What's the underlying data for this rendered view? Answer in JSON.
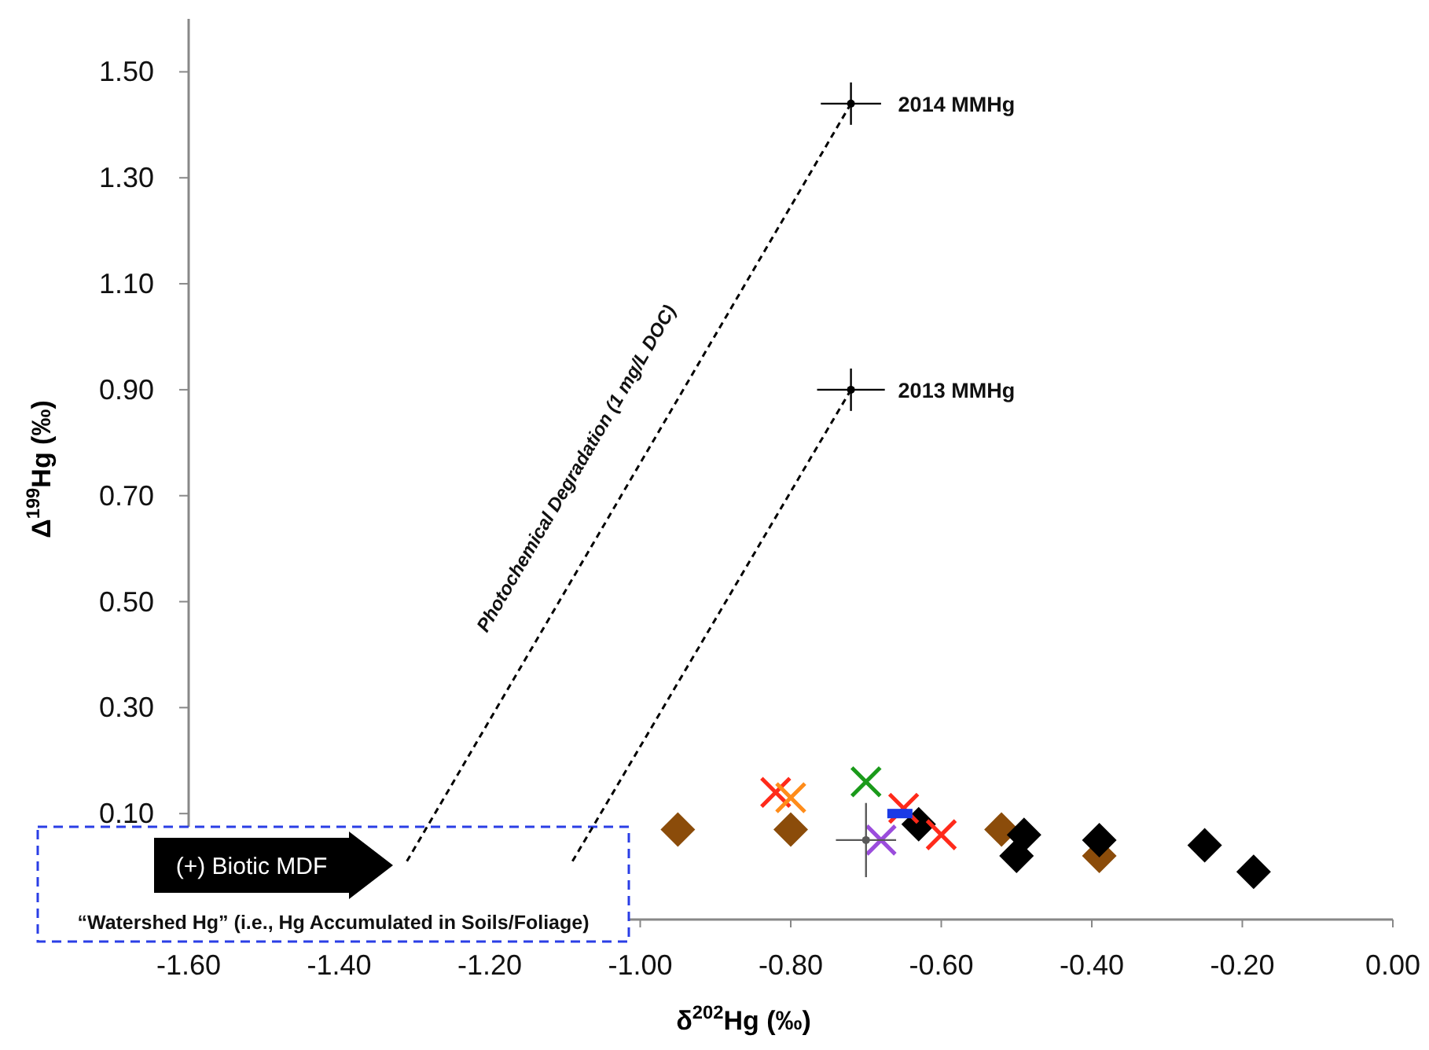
{
  "chart_data": {
    "type": "scatter",
    "xlabel": "δ$^{202}$Hg (‰)",
    "ylabel": "Δ$^{199}$Hg (‰)",
    "xlim": [
      -1.6,
      0
    ],
    "xticks": [
      {
        "value": -1.6,
        "label": "-1.60"
      },
      {
        "value": -1.4,
        "label": "-1.40"
      },
      {
        "value": -1.2,
        "label": "-1.20"
      },
      {
        "value": -1,
        "label": "-1.00"
      },
      {
        "value": -0.8,
        "label": "-0.80"
      },
      {
        "value": -0.6,
        "label": "-0.60"
      },
      {
        "value": -0.4,
        "label": "-0.40"
      },
      {
        "value": -0.2,
        "label": "-0.20"
      },
      {
        "value": 0,
        "label": "0.00"
      }
    ],
    "ylim": [
      -0.1,
      1.6
    ],
    "yticks": [
      {
        "value": 0.1,
        "label": "0.10"
      },
      {
        "value": 0.3,
        "label": "0.30"
      },
      {
        "value": 0.5,
        "label": "0.50"
      },
      {
        "value": 0.7,
        "label": "0.70"
      },
      {
        "value": 0.9,
        "label": "0.90"
      },
      {
        "value": 1.1,
        "label": "1.10"
      },
      {
        "value": 1.3,
        "label": "1.30"
      },
      {
        "value": 1.5,
        "label": "1.50"
      }
    ],
    "grid": false,
    "series": [
      {
        "type": "line",
        "line_style": "dashed",
        "marker": "none",
        "color": "#000000",
        "x": [
          -1.31,
          -0.72
        ],
        "values": [
          0.01,
          1.44
        ]
      },
      {
        "type": "line",
        "line_style": "dashed",
        "marker": "none",
        "color": "#000000",
        "x": [
          -1.09,
          -0.72
        ],
        "values": [
          0.01,
          0.9
        ]
      },
      {
        "marker": "diamond",
        "color": "#8b4c0a",
        "x": [
          -0.95,
          -0.8,
          -0.52,
          -0.39
        ],
        "values": [
          0.07,
          0.07,
          0.07,
          0.02
        ]
      },
      {
        "marker": "diamond",
        "color": "#000000",
        "x": [
          -0.63,
          -0.49,
          -0.5,
          -0.39,
          -0.25,
          -0.185
        ],
        "values": [
          0.08,
          0.06,
          0.02,
          0.05,
          0.04,
          -0.01
        ]
      },
      {
        "marker": "cross",
        "color": "#ff2a1a",
        "x": [
          -0.82,
          -0.65,
          -0.6
        ],
        "values": [
          0.14,
          0.11,
          0.06
        ]
      },
      {
        "marker": "cross",
        "color": "#ff8c1a",
        "x": [
          -0.8
        ],
        "values": [
          0.13
        ]
      },
      {
        "marker": "cross",
        "color": "#1a9a1a",
        "x": [
          -0.7
        ],
        "values": [
          0.16
        ]
      },
      {
        "marker": "cross",
        "color": "#9b4ddc",
        "x": [
          -0.68
        ],
        "values": [
          0.05
        ]
      },
      {
        "marker": "square",
        "color": "#1a3ae6",
        "x": [
          -0.655
        ],
        "values": [
          0.1
        ]
      },
      {
        "marker": "circle",
        "color": "#595959",
        "x": [
          -0.7
        ],
        "values": [
          0.05
        ],
        "xerrors": [
          0.04
        ],
        "errors": [
          0.07
        ]
      },
      {
        "marker": "circle",
        "color": "#000000",
        "x": [
          -0.72,
          -0.72
        ],
        "values": [
          1.44,
          0.9
        ],
        "xerrors": [
          0.04,
          0.045
        ],
        "errors": [
          0.04,
          0.04
        ]
      }
    ],
    "annotations": [
      "Photochemical Degradation (1 mg/L DOC)",
      {
        "text": "2014 MMHg",
        "x": -0.72,
        "y": 1.44
      },
      {
        "text": "2013 MMHg",
        "x": -0.72,
        "y": 0.9
      },
      "(+) Biotic MDF",
      "“Watershed Hg” (i.e., Hg Accumulated in Soils/Foliage)"
    ]
  }
}
